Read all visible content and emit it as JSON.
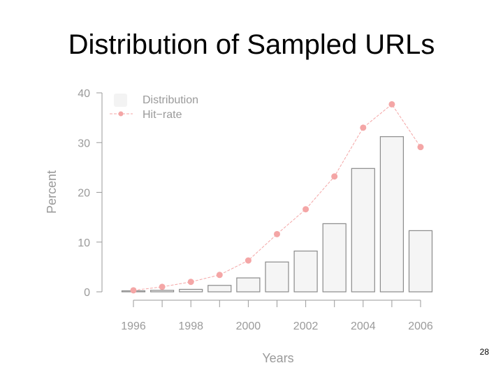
{
  "slide": {
    "title": "Distribution of Sampled URLs",
    "page_number": "28"
  },
  "chart_data": {
    "type": "bar",
    "title": "",
    "xlabel": "Years",
    "ylabel": "Percent",
    "x": [
      1996,
      1997,
      1998,
      1999,
      2000,
      2001,
      2002,
      2003,
      2004,
      2005,
      2006
    ],
    "xticks": [
      "1996",
      "1998",
      "2000",
      "2002",
      "2004",
      "2006"
    ],
    "yticks": [
      "0",
      "10",
      "20",
      "30",
      "40"
    ],
    "ylim": [
      0,
      40
    ],
    "grid": false,
    "legend": "top-left",
    "series": [
      {
        "name": "Distribution",
        "type": "bar",
        "color": "#f5f5f5",
        "edge_color": "#8a8a8a",
        "values": [
          0.2,
          0.3,
          0.5,
          1.3,
          2.8,
          6.0,
          8.2,
          13.7,
          24.8,
          31.2,
          12.3
        ]
      },
      {
        "name": "Hit−rate",
        "type": "line",
        "color": "#f4a6a6",
        "values": [
          0.3,
          1.0,
          2.0,
          3.4,
          6.3,
          11.6,
          16.6,
          23.2,
          33.0,
          37.7,
          29.1
        ]
      }
    ]
  }
}
